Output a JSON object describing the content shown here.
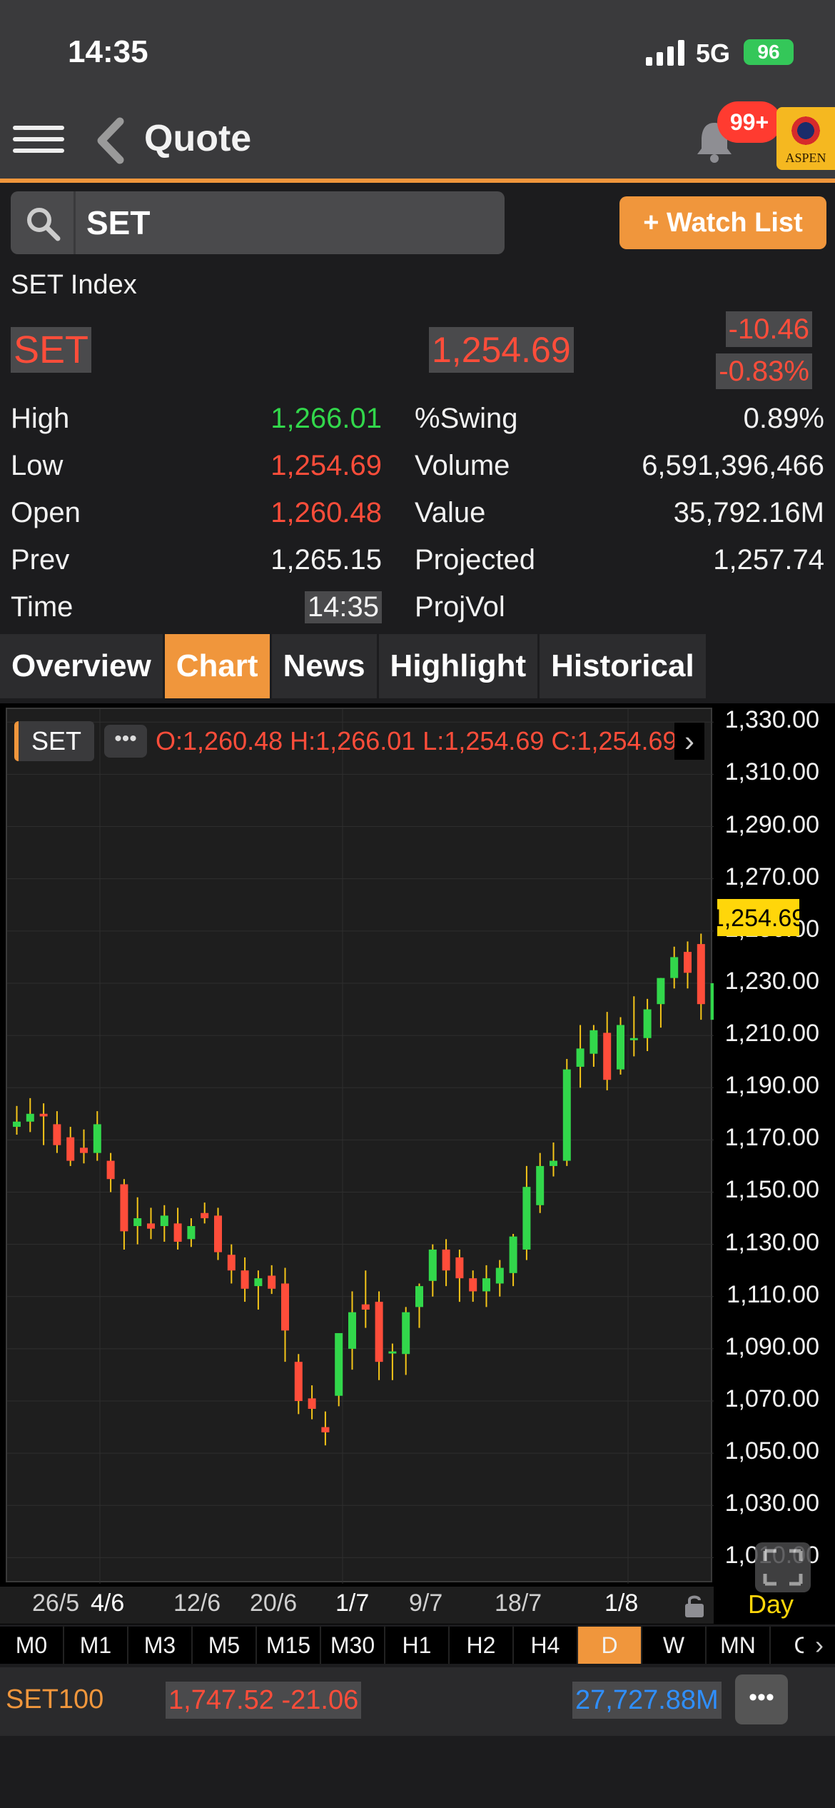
{
  "status_bar": {
    "time": "14:35",
    "network": "5G",
    "battery": "96"
  },
  "nav": {
    "title": "Quote",
    "notification_badge": "99+",
    "logo_text": "ASPEN"
  },
  "search": {
    "value": "SET",
    "watch_list_label": "+ Watch List"
  },
  "quote": {
    "index_name": "SET Index",
    "symbol": "SET",
    "last": "1,254.69",
    "change": "-10.46",
    "change_pct": "-0.83%"
  },
  "stats": [
    {
      "label": "High",
      "value": "1,266.01",
      "color": "green",
      "label2": "%Swing",
      "value2": "0.89%"
    },
    {
      "label": "Low",
      "value": "1,254.69",
      "color": "red",
      "label2": "Volume",
      "value2": "6,591,396,466"
    },
    {
      "label": "Open",
      "value": "1,260.48",
      "color": "red",
      "label2": "Value",
      "value2": "35,792.16M"
    },
    {
      "label": "Prev",
      "value": "1,265.15",
      "color": "white",
      "label2": "Projected",
      "value2": "1,257.74",
      "color2": "red"
    },
    {
      "label": "Time",
      "value": "14:35",
      "color": "white",
      "label2": "ProjVol",
      "value2": ""
    }
  ],
  "tabs": [
    {
      "label": "Overview",
      "active": false
    },
    {
      "label": "Chart",
      "active": true
    },
    {
      "label": "News",
      "active": false
    },
    {
      "label": "Highlight",
      "active": false
    },
    {
      "label": "Historical",
      "active": false
    }
  ],
  "chart_header": {
    "symbol_chip": "SET",
    "more": "•••",
    "ohlc": "O:1,260.48  H:1,266.01  L:1,254.69  C:1,254.69"
  },
  "chart_data": {
    "type": "candlestick",
    "y_ticks": [
      "1,330.00",
      "1,310.00",
      "1,290.00",
      "1,270.00",
      "1,250.00",
      "1,230.00",
      "1,210.00",
      "1,190.00",
      "1,170.00",
      "1,150.00",
      "1,130.00",
      "1,110.00",
      "1,090.00",
      "1,070.00",
      "1,050.00",
      "1,030.00",
      "1,010.00"
    ],
    "ylim": [
      1000,
      1335
    ],
    "current_price_label": "1,254.69",
    "x_ticks": [
      "26/5",
      "4/6",
      "12/6",
      "20/6",
      "1/7",
      "9/7",
      "18/7",
      "1/8"
    ],
    "interval_label": "Day",
    "candles": [
      [
        1175,
        1183,
        1172,
        1177
      ],
      [
        1177,
        1186,
        1173,
        1180
      ],
      [
        1180,
        1184,
        1168,
        1179
      ],
      [
        1176,
        1181,
        1165,
        1168
      ],
      [
        1171,
        1175,
        1160,
        1162
      ],
      [
        1167,
        1174,
        1161,
        1165
      ],
      [
        1165,
        1181,
        1162,
        1176
      ],
      [
        1162,
        1165,
        1150,
        1155
      ],
      [
        1153,
        1155,
        1128,
        1135
      ],
      [
        1137,
        1148,
        1130,
        1140
      ],
      [
        1138,
        1144,
        1132,
        1136
      ],
      [
        1137,
        1145,
        1131,
        1141
      ],
      [
        1138,
        1144,
        1128,
        1131
      ],
      [
        1132,
        1140,
        1129,
        1137
      ],
      [
        1142,
        1146,
        1138,
        1140
      ],
      [
        1141,
        1144,
        1124,
        1127
      ],
      [
        1126,
        1130,
        1115,
        1120
      ],
      [
        1120,
        1125,
        1108,
        1113
      ],
      [
        1114,
        1120,
        1105,
        1117
      ],
      [
        1118,
        1122,
        1111,
        1113
      ],
      [
        1115,
        1121,
        1085,
        1097
      ],
      [
        1085,
        1088,
        1065,
        1070
      ],
      [
        1071,
        1076,
        1063,
        1067
      ],
      [
        1060,
        1066,
        1053,
        1058
      ],
      [
        1072,
        1096,
        1068,
        1096
      ],
      [
        1090,
        1112,
        1082,
        1104
      ],
      [
        1107,
        1120,
        1098,
        1105
      ],
      [
        1108,
        1112,
        1078,
        1085
      ],
      [
        1089,
        1092,
        1078,
        1089
      ],
      [
        1088,
        1106,
        1080,
        1104
      ],
      [
        1106,
        1115,
        1098,
        1114
      ],
      [
        1116,
        1130,
        1110,
        1128
      ],
      [
        1128,
        1132,
        1114,
        1120
      ],
      [
        1125,
        1128,
        1108,
        1117
      ],
      [
        1117,
        1120,
        1108,
        1112
      ],
      [
        1112,
        1122,
        1106,
        1117
      ],
      [
        1115,
        1124,
        1110,
        1121
      ],
      [
        1119,
        1134,
        1114,
        1133
      ],
      [
        1128,
        1160,
        1124,
        1152
      ],
      [
        1145,
        1165,
        1142,
        1160
      ],
      [
        1160,
        1169,
        1156,
        1162
      ],
      [
        1162,
        1201,
        1160,
        1197
      ],
      [
        1198,
        1214,
        1190,
        1205
      ],
      [
        1203,
        1214,
        1198,
        1212
      ],
      [
        1211,
        1219,
        1189,
        1193
      ],
      [
        1197,
        1217,
        1195,
        1214
      ],
      [
        1209,
        1225,
        1202,
        1209
      ],
      [
        1209,
        1224,
        1204,
        1220
      ],
      [
        1222,
        1232,
        1213,
        1232
      ],
      [
        1232,
        1244,
        1228,
        1240
      ],
      [
        1242,
        1246,
        1228,
        1234
      ],
      [
        1245,
        1249,
        1216,
        1222
      ],
      [
        1216,
        1234,
        1212,
        1230
      ],
      [
        1230,
        1247,
        1225,
        1244
      ],
      [
        1244,
        1260,
        1242,
        1255
      ],
      [
        1264,
        1280,
        1256,
        1262
      ],
      [
        1260,
        1266,
        1254,
        1254
      ]
    ]
  },
  "timeframes": [
    {
      "label": "M0",
      "active": false
    },
    {
      "label": "M1",
      "active": false
    },
    {
      "label": "M3",
      "active": false
    },
    {
      "label": "M5",
      "active": false
    },
    {
      "label": "M15",
      "active": false
    },
    {
      "label": "M30",
      "active": false
    },
    {
      "label": "H1",
      "active": false
    },
    {
      "label": "H2",
      "active": false
    },
    {
      "label": "H4",
      "active": false
    },
    {
      "label": "D",
      "active": true
    },
    {
      "label": "W",
      "active": false
    },
    {
      "label": "MN",
      "active": false
    },
    {
      "label": "C",
      "active": false
    }
  ],
  "ticker": {
    "name": "SET100",
    "price_change": "1,747.52 -21.06",
    "value": "27,727.88M",
    "more": "•••"
  },
  "colors": {
    "accent": "#f0963c",
    "up": "#32d74b",
    "down": "#ff4d3a",
    "wick": "#f5c518"
  }
}
